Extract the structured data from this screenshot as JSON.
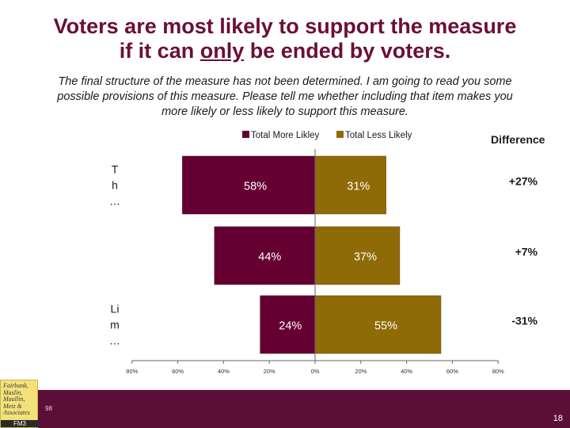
{
  "title": {
    "line1": "Voters are most likely to support the measure",
    "line2_pre": "if it can ",
    "line2_emph": "only",
    "line2_post": " be ended by voters."
  },
  "subtitle": "The final structure of the measure has not been determined. I am going to read you some possible provisions of this measure.  Please tell me whether including that item makes you more likely or less likely to support this measure.",
  "footer": {
    "logo_text": "Fairbank, Maslin, Maullin, Metz & Associates",
    "logo_badge": "FM3",
    "job_number": "98",
    "page_number": "18"
  },
  "colors": {
    "more": "#660033",
    "less": "#8f6b07",
    "title": "#6b0f36",
    "footer": "#5c0f36"
  },
  "chart_data": {
    "type": "bar",
    "orientation": "horizontal-diverging",
    "categories": [
      "T h …",
      "",
      "Li m …"
    ],
    "series": [
      {
        "name": "Total More Likley",
        "values": [
          58,
          44,
          24
        ]
      },
      {
        "name": "Total Less Likely",
        "values": [
          31,
          37,
          55
        ]
      }
    ],
    "data_labels_more": [
      "58%",
      "44%",
      "24%"
    ],
    "data_labels_less": [
      "31%",
      "37%",
      "55%"
    ],
    "difference_header": "Difference",
    "difference": [
      "+27%",
      "+7%",
      "-31%"
    ],
    "xlim": [
      -80,
      80
    ],
    "x_ticks": [
      -80,
      -60,
      -40,
      -20,
      0,
      20,
      40,
      60,
      80
    ],
    "x_tick_labels": [
      "80%",
      "60%",
      "40%",
      "20%",
      "0%",
      "20%",
      "40%",
      "60%",
      "80%"
    ],
    "legend_position": "top",
    "grid": false
  }
}
